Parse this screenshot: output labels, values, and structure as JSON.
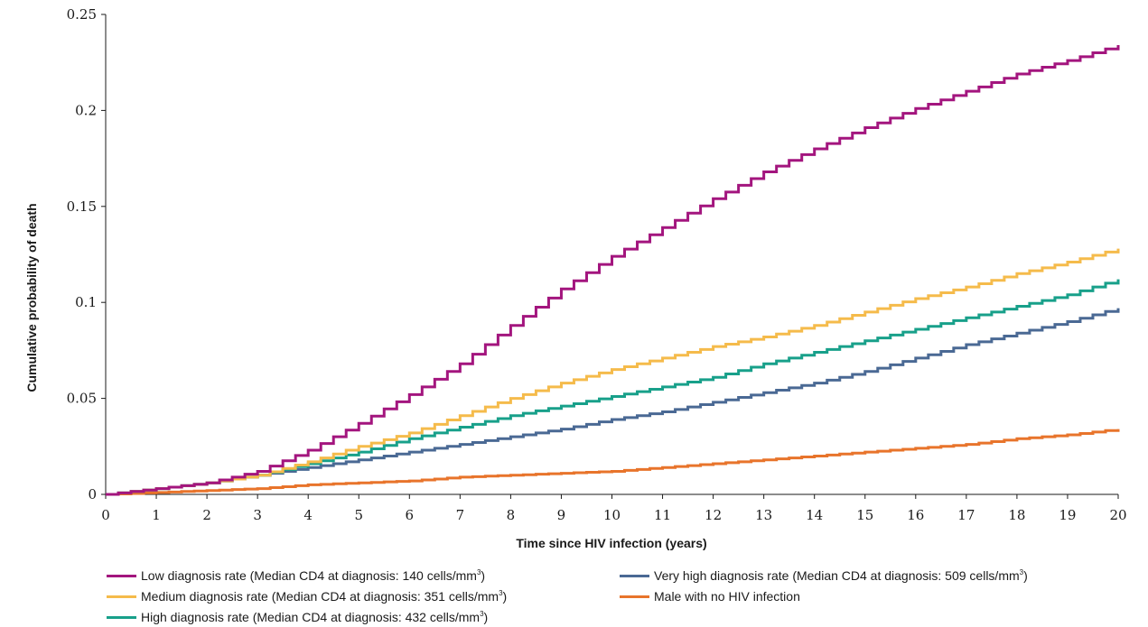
{
  "chart_data": {
    "type": "line",
    "xlabel": "Time since HIV infection (years)",
    "ylabel": "Cumulative probability of death",
    "xlim": [
      0,
      20
    ],
    "ylim": [
      0,
      0.25
    ],
    "x_ticks": [
      "0",
      "1",
      "2",
      "3",
      "4",
      "5",
      "6",
      "7",
      "8",
      "9",
      "10",
      "11",
      "12",
      "13",
      "14",
      "15",
      "16",
      "17",
      "18",
      "19",
      "20"
    ],
    "y_ticks": [
      "0",
      "0.05",
      "0.1",
      "0.15",
      "0.2",
      "0.25"
    ],
    "grid": false,
    "legend_position": "bottom",
    "x": [
      0,
      1,
      2,
      3,
      4,
      5,
      6,
      7,
      8,
      9,
      10,
      11,
      12,
      13,
      14,
      15,
      16,
      17,
      18,
      19,
      20
    ],
    "series": [
      {
        "name_main": "Low diagnosis rate (Median CD4 at diagnosis: 140 cells/mm",
        "name_sup": "3",
        "name_end": ")",
        "color": "#a3157e",
        "values": [
          0,
          0.003,
          0.006,
          0.012,
          0.023,
          0.037,
          0.052,
          0.068,
          0.088,
          0.107,
          0.124,
          0.139,
          0.154,
          0.168,
          0.18,
          0.191,
          0.201,
          0.21,
          0.219,
          0.226,
          0.234
        ]
      },
      {
        "name_main": "Medium diagnosis rate (Median CD4 at diagnosis: 351 cells/mm",
        "name_sup": "3",
        "name_end": ")",
        "color": "#f5bb4b",
        "values": [
          0,
          0.003,
          0.006,
          0.01,
          0.017,
          0.025,
          0.032,
          0.041,
          0.05,
          0.058,
          0.065,
          0.071,
          0.077,
          0.082,
          0.088,
          0.095,
          0.102,
          0.108,
          0.115,
          0.121,
          0.128
        ]
      },
      {
        "name_main": "High diagnosis rate (Median CD4 at diagnosis: 432 cells/mm",
        "name_sup": "3",
        "name_end": ")",
        "color": "#18a08a",
        "values": [
          0,
          0.003,
          0.006,
          0.01,
          0.016,
          0.022,
          0.029,
          0.035,
          0.041,
          0.046,
          0.051,
          0.056,
          0.061,
          0.068,
          0.074,
          0.08,
          0.086,
          0.092,
          0.098,
          0.104,
          0.112
        ]
      },
      {
        "name_main": "Very high diagnosis rate (Median CD4 at diagnosis: 509 cells/mm",
        "name_sup": "3",
        "name_end": ")",
        "color": "#4a6994",
        "values": [
          0,
          0.003,
          0.006,
          0.01,
          0.014,
          0.018,
          0.022,
          0.026,
          0.03,
          0.034,
          0.039,
          0.043,
          0.048,
          0.053,
          0.058,
          0.064,
          0.071,
          0.078,
          0.084,
          0.09,
          0.097
        ]
      },
      {
        "name_main": "Male with no HIV infection",
        "name_sup": "",
        "name_end": "",
        "color": "#e8742b",
        "values": [
          0,
          0.001,
          0.002,
          0.003,
          0.005,
          0.006,
          0.007,
          0.009,
          0.01,
          0.011,
          0.012,
          0.014,
          0.016,
          0.018,
          0.02,
          0.022,
          0.024,
          0.026,
          0.029,
          0.031,
          0.034
        ]
      }
    ]
  }
}
